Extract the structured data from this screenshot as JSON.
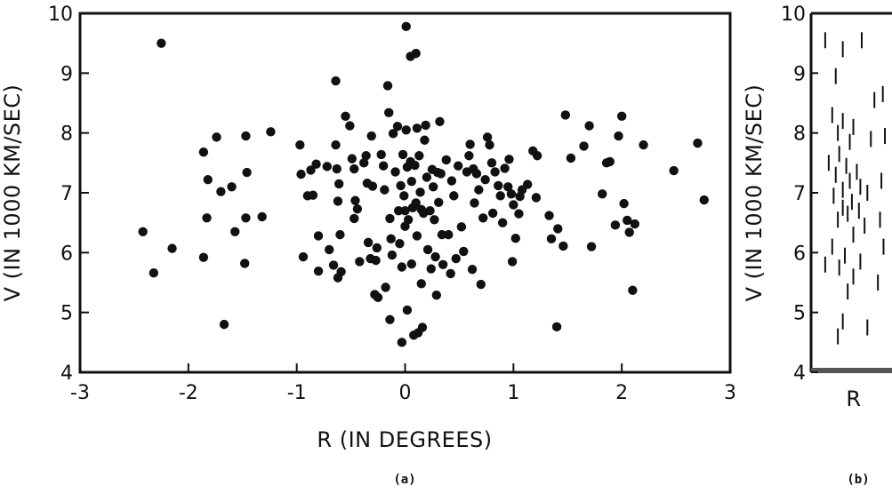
{
  "chart_data": [
    {
      "type": "scatter",
      "panel": "(a)",
      "title": "",
      "xlabel": "R (IN DEGREES)",
      "ylabel": "V (IN 1000 KM/SEC)",
      "xlim": [
        -3,
        3
      ],
      "ylim": [
        4,
        10
      ],
      "xticks": [
        "-3",
        "-2",
        "-1",
        "0",
        "1",
        "2",
        "3"
      ],
      "yticks": [
        "4",
        "5",
        "6",
        "7",
        "8",
        "9",
        "10"
      ],
      "grid": false,
      "marker_color": "#111111",
      "points": [
        [
          -2.25,
          9.5
        ],
        [
          -2.42,
          6.35
        ],
        [
          -2.32,
          5.66
        ],
        [
          -2.15,
          6.07
        ],
        [
          -1.86,
          7.68
        ],
        [
          -1.74,
          7.93
        ],
        [
          -1.82,
          7.22
        ],
        [
          -1.7,
          7.02
        ],
        [
          -1.83,
          6.58
        ],
        [
          -1.86,
          5.92
        ],
        [
          -1.67,
          4.8
        ],
        [
          -1.6,
          7.1
        ],
        [
          -1.57,
          6.35
        ],
        [
          -1.47,
          7.95
        ],
        [
          -1.46,
          7.34
        ],
        [
          -1.47,
          6.58
        ],
        [
          -1.48,
          5.82
        ],
        [
          -1.32,
          6.6
        ],
        [
          -1.24,
          8.02
        ],
        [
          -0.97,
          7.8
        ],
        [
          -0.96,
          7.31
        ],
        [
          -0.94,
          5.93
        ],
        [
          -0.9,
          6.95
        ],
        [
          -0.87,
          7.38
        ],
        [
          -0.85,
          6.96
        ],
        [
          -0.82,
          7.48
        ],
        [
          -0.8,
          6.28
        ],
        [
          -0.8,
          5.69
        ],
        [
          -0.72,
          7.44
        ],
        [
          -0.7,
          6.05
        ],
        [
          -0.66,
          5.79
        ],
        [
          -0.64,
          8.87
        ],
        [
          -0.64,
          7.8
        ],
        [
          -0.63,
          7.4
        ],
        [
          -0.61,
          7.15
        ],
        [
          -0.62,
          6.86
        ],
        [
          -0.6,
          6.3
        ],
        [
          -0.62,
          5.58
        ],
        [
          -0.59,
          5.68
        ],
        [
          -0.55,
          8.28
        ],
        [
          -0.51,
          8.12
        ],
        [
          -0.49,
          7.57
        ],
        [
          -0.47,
          7.4
        ],
        [
          -0.46,
          6.87
        ],
        [
          -0.47,
          6.57
        ],
        [
          -0.44,
          6.73
        ],
        [
          -0.42,
          5.85
        ],
        [
          -0.38,
          7.5
        ],
        [
          -0.36,
          7.62
        ],
        [
          -0.35,
          7.16
        ],
        [
          -0.34,
          6.17
        ],
        [
          -0.32,
          5.9
        ],
        [
          -0.31,
          7.95
        ],
        [
          -0.3,
          7.11
        ],
        [
          -0.28,
          5.3
        ],
        [
          -0.27,
          5.87
        ],
        [
          -0.26,
          6.08
        ],
        [
          -0.25,
          5.25
        ],
        [
          -0.22,
          7.64
        ],
        [
          -0.2,
          7.45
        ],
        [
          -0.19,
          7.05
        ],
        [
          -0.18,
          5.42
        ],
        [
          -0.16,
          8.79
        ],
        [
          -0.15,
          8.34
        ],
        [
          -0.14,
          6.57
        ],
        [
          -0.13,
          6.23
        ],
        [
          -0.12,
          5.96
        ],
        [
          -0.14,
          4.88
        ],
        [
          -0.11,
          7.99
        ],
        [
          -0.09,
          7.35
        ],
        [
          -0.07,
          8.11
        ],
        [
          -0.06,
          6.7
        ],
        [
          -0.05,
          6.15
        ],
        [
          -0.04,
          7.12
        ],
        [
          -0.03,
          5.76
        ],
        [
          -0.03,
          4.5
        ],
        [
          -0.02,
          7.64
        ],
        [
          -0.01,
          6.95
        ],
        [
          0.0,
          6.7
        ],
        [
          0.0,
          6.44
        ],
        [
          0.01,
          9.78
        ],
        [
          0.01,
          8.05
        ],
        [
          0.02,
          7.43
        ],
        [
          0.02,
          5.04
        ],
        [
          0.03,
          6.55
        ],
        [
          0.05,
          7.52
        ],
        [
          0.05,
          9.28
        ],
        [
          0.06,
          7.19
        ],
        [
          0.06,
          5.81
        ],
        [
          0.07,
          6.75
        ],
        [
          0.08,
          4.62
        ],
        [
          0.09,
          7.46
        ],
        [
          0.1,
          6.83
        ],
        [
          0.11,
          6.28
        ],
        [
          0.1,
          9.33
        ],
        [
          0.11,
          8.08
        ],
        [
          0.12,
          4.66
        ],
        [
          0.13,
          7.62
        ],
        [
          0.14,
          7.01
        ],
        [
          0.15,
          6.72
        ],
        [
          0.15,
          5.48
        ],
        [
          0.16,
          4.75
        ],
        [
          0.17,
          6.66
        ],
        [
          0.18,
          7.88
        ],
        [
          0.19,
          8.13
        ],
        [
          0.2,
          7.26
        ],
        [
          0.21,
          6.05
        ],
        [
          0.23,
          6.7
        ],
        [
          0.24,
          5.73
        ],
        [
          0.25,
          7.39
        ],
        [
          0.26,
          7.1
        ],
        [
          0.27,
          6.55
        ],
        [
          0.28,
          5.93
        ],
        [
          0.29,
          5.29
        ],
        [
          0.3,
          7.34
        ],
        [
          0.31,
          6.84
        ],
        [
          0.32,
          8.19
        ],
        [
          0.33,
          7.32
        ],
        [
          0.34,
          6.3
        ],
        [
          0.35,
          5.8
        ],
        [
          0.38,
          7.55
        ],
        [
          0.4,
          6.3
        ],
        [
          0.42,
          5.65
        ],
        [
          0.43,
          7.2
        ],
        [
          0.45,
          6.95
        ],
        [
          0.47,
          5.9
        ],
        [
          0.49,
          7.45
        ],
        [
          0.52,
          6.43
        ],
        [
          0.54,
          6.02
        ],
        [
          0.57,
          7.35
        ],
        [
          0.59,
          7.62
        ],
        [
          0.6,
          7.81
        ],
        [
          0.62,
          5.72
        ],
        [
          0.63,
          7.4
        ],
        [
          0.64,
          6.83
        ],
        [
          0.66,
          7.32
        ],
        [
          0.68,
          7.05
        ],
        [
          0.7,
          5.47
        ],
        [
          0.72,
          6.58
        ],
        [
          0.74,
          7.22
        ],
        [
          0.76,
          7.93
        ],
        [
          0.78,
          7.8
        ],
        [
          0.8,
          7.5
        ],
        [
          0.81,
          6.66
        ],
        [
          0.83,
          7.35
        ],
        [
          0.86,
          7.12
        ],
        [
          0.88,
          6.95
        ],
        [
          0.9,
          6.5
        ],
        [
          0.92,
          7.41
        ],
        [
          0.95,
          7.1
        ],
        [
          0.96,
          7.56
        ],
        [
          0.98,
          6.98
        ],
        [
          0.99,
          5.85
        ],
        [
          1.0,
          6.8
        ],
        [
          1.02,
          6.24
        ],
        [
          1.05,
          6.65
        ],
        [
          1.06,
          6.94
        ],
        [
          1.08,
          7.05
        ],
        [
          1.13,
          7.14
        ],
        [
          1.18,
          7.7
        ],
        [
          1.22,
          7.62
        ],
        [
          1.21,
          6.92
        ],
        [
          1.33,
          6.62
        ],
        [
          1.35,
          6.23
        ],
        [
          1.41,
          6.4
        ],
        [
          1.4,
          4.76
        ],
        [
          1.46,
          6.11
        ],
        [
          1.48,
          8.3
        ],
        [
          1.53,
          7.58
        ],
        [
          1.65,
          7.78
        ],
        [
          1.7,
          8.12
        ],
        [
          1.72,
          6.1
        ],
        [
          1.82,
          6.98
        ],
        [
          1.86,
          7.5
        ],
        [
          1.89,
          7.52
        ],
        [
          1.94,
          6.46
        ],
        [
          1.97,
          7.95
        ],
        [
          2.0,
          8.28
        ],
        [
          2.02,
          6.82
        ],
        [
          2.05,
          6.54
        ],
        [
          2.07,
          6.34
        ],
        [
          2.1,
          5.37
        ],
        [
          2.12,
          6.48
        ],
        [
          2.2,
          7.8
        ],
        [
          2.48,
          7.37
        ],
        [
          2.7,
          7.83
        ],
        [
          2.76,
          6.88
        ]
      ]
    },
    {
      "type": "scatter",
      "panel": "(b)",
      "title": "",
      "xlabel": "R",
      "ylabel": "V (IN 1000 KM/SEC)",
      "ylim": [
        4,
        10
      ],
      "yticks": [
        "4",
        "5",
        "6",
        "7",
        "8",
        "9",
        "10"
      ],
      "grid": false,
      "marker": "vertical-dash",
      "marker_color": "#111111",
      "points": [
        [
          0.1,
          9.55
        ],
        [
          0.35,
          9.4
        ],
        [
          0.25,
          8.95
        ],
        [
          0.62,
          9.55
        ],
        [
          0.8,
          8.55
        ],
        [
          0.2,
          8.3
        ],
        [
          0.35,
          8.2
        ],
        [
          0.5,
          8.1
        ],
        [
          0.28,
          8.0
        ],
        [
          0.45,
          7.85
        ],
        [
          0.75,
          7.9
        ],
        [
          0.3,
          7.65
        ],
        [
          0.15,
          7.5
        ],
        [
          0.4,
          7.45
        ],
        [
          0.55,
          7.35
        ],
        [
          0.25,
          7.3
        ],
        [
          0.45,
          7.2
        ],
        [
          0.6,
          7.1
        ],
        [
          0.35,
          7.05
        ],
        [
          0.7,
          7.0
        ],
        [
          0.22,
          6.95
        ],
        [
          0.48,
          6.85
        ],
        [
          0.35,
          6.75
        ],
        [
          0.58,
          6.7
        ],
        [
          0.42,
          6.65
        ],
        [
          0.28,
          6.55
        ],
        [
          0.66,
          6.45
        ],
        [
          0.5,
          6.3
        ],
        [
          0.2,
          6.1
        ],
        [
          0.38,
          5.95
        ],
        [
          0.6,
          5.85
        ],
        [
          0.3,
          5.75
        ],
        [
          0.5,
          5.6
        ],
        [
          0.1,
          5.8
        ],
        [
          0.85,
          5.5
        ],
        [
          0.42,
          5.35
        ],
        [
          0.35,
          4.85
        ],
        [
          0.28,
          4.6
        ],
        [
          0.7,
          4.75
        ],
        [
          0.92,
          8.65
        ],
        [
          0.95,
          7.95
        ],
        [
          0.9,
          7.2
        ],
        [
          0.88,
          6.55
        ],
        [
          0.93,
          6.1
        ]
      ]
    }
  ]
}
